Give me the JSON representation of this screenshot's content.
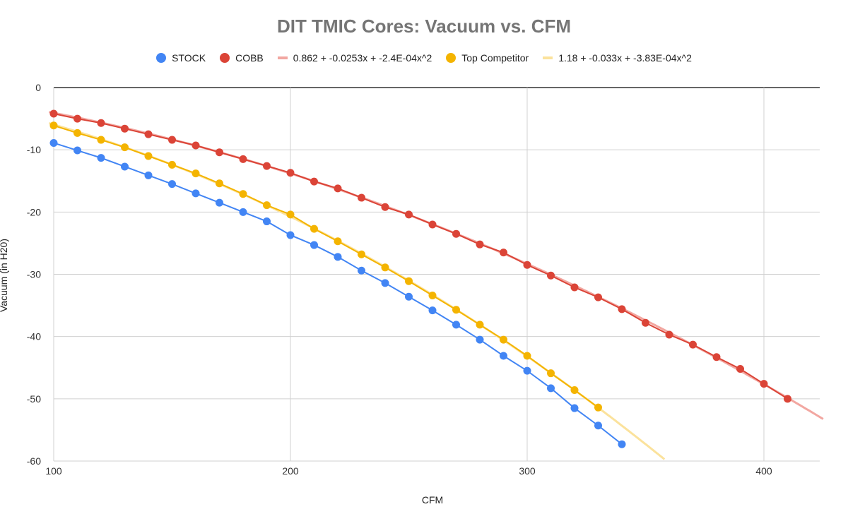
{
  "chart_data": {
    "type": "scatter",
    "title": "DIT TMIC Cores: Vacuum vs. CFM",
    "xlabel": "CFM",
    "ylabel": "Vacuum (in H20)",
    "xlim": [
      100,
      425
    ],
    "ylim": [
      -60,
      0
    ],
    "xticks": [
      "100",
      "200",
      "300",
      "400"
    ],
    "yticks": [
      "0",
      "-10",
      "-20",
      "-30",
      "-40",
      "-50",
      "-60"
    ],
    "grid": true,
    "legend_position": "top",
    "series": [
      {
        "name": "STOCK",
        "color": "#4285f4",
        "x": [
          100,
          110,
          120,
          130,
          140,
          150,
          160,
          170,
          180,
          190,
          200,
          210,
          220,
          230,
          240,
          250,
          260,
          270,
          280,
          290,
          300,
          310,
          320,
          330,
          340
        ],
        "y": [
          -8.9,
          -10.1,
          -11.3,
          -12.7,
          -14.1,
          -15.5,
          -17.0,
          -18.5,
          -20.0,
          -21.5,
          -23.7,
          -25.3,
          -27.2,
          -29.4,
          -31.4,
          -33.6,
          -35.8,
          -38.1,
          -40.5,
          -43.1,
          -45.5,
          -48.3,
          -51.5,
          -54.3,
          -57.3
        ]
      },
      {
        "name": "COBB",
        "color": "#db4437",
        "x": [
          100,
          110,
          120,
          130,
          140,
          150,
          160,
          170,
          180,
          190,
          200,
          210,
          220,
          230,
          240,
          250,
          260,
          270,
          280,
          290,
          300,
          310,
          320,
          330,
          340,
          350,
          360,
          370,
          380,
          390,
          400,
          410
        ],
        "y": [
          -4.2,
          -5.0,
          -5.7,
          -6.6,
          -7.5,
          -8.4,
          -9.3,
          -10.4,
          -11.5,
          -12.6,
          -13.7,
          -15.1,
          -16.2,
          -17.7,
          -19.2,
          -20.4,
          -22.0,
          -23.5,
          -25.2,
          -26.5,
          -28.5,
          -30.2,
          -32.1,
          -33.7,
          -35.6,
          -37.8,
          -39.7,
          -41.3,
          -43.3,
          -45.2,
          -47.6,
          -50.0
        ]
      },
      {
        "name": "Top Competitor",
        "color": "#f4b400",
        "x": [
          100,
          110,
          120,
          130,
          140,
          150,
          160,
          170,
          180,
          190,
          200,
          210,
          220,
          230,
          240,
          250,
          260,
          270,
          280,
          290,
          300,
          310,
          320,
          330
        ],
        "y": [
          -6.1,
          -7.3,
          -8.4,
          -9.6,
          -11.0,
          -12.4,
          -13.8,
          -15.4,
          -17.1,
          -18.9,
          -20.4,
          -22.7,
          -24.7,
          -26.8,
          -28.9,
          -31.1,
          -33.4,
          -35.7,
          -38.1,
          -40.5,
          -43.1,
          -45.9,
          -48.6,
          -51.4
        ]
      }
    ],
    "trendlines": [
      {
        "name": "0.862 + -0.0253x + -2.4E-04x^2",
        "color": "#f2a7a1",
        "coef": [
          0.862,
          -0.0253,
          -0.00024
        ]
      },
      {
        "name": "1.18 + -0.033x + -3.83E-04x^2",
        "color": "#fbe29c",
        "coef": [
          1.18,
          -0.033,
          -0.000383
        ]
      }
    ]
  }
}
